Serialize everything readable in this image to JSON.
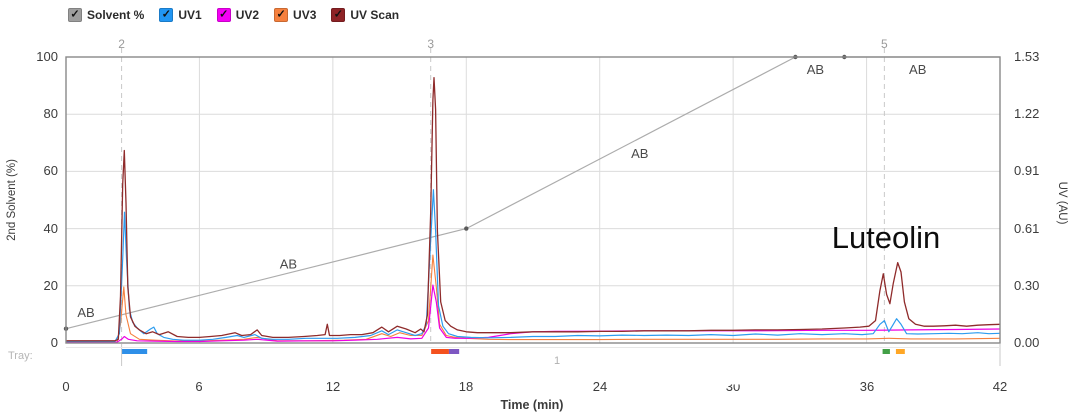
{
  "legend": {
    "checkmark_glyph": "✓",
    "items": [
      {
        "label": "Solvent %",
        "color": "#9E9E9E"
      },
      {
        "label": "UV1",
        "color": "#2196F3"
      },
      {
        "label": "UV2",
        "color": "#F400F4"
      },
      {
        "label": "UV3",
        "color": "#F5803E"
      },
      {
        "label": "UV Scan",
        "color": "#8E2326"
      }
    ]
  },
  "tray": {
    "label": "Tray:",
    "zone_label": "1"
  },
  "annotations": {
    "luteolin": {
      "text": "Luteolin"
    }
  },
  "chart_data": {
    "type": "line",
    "title": "",
    "xlabel": "Time (min)",
    "ylabel_left": "2nd Solvent (%)",
    "ylabel_right": "UV (AU)",
    "xlim": [
      0,
      42
    ],
    "ylim_left": [
      0,
      100
    ],
    "ylim_right": [
      0,
      1.53
    ],
    "x_ticks": {
      "values": [
        0,
        6,
        12,
        18,
        24,
        30,
        36,
        42
      ],
      "labels": [
        "0",
        "6",
        "12",
        "18",
        "24",
        "30",
        "36",
        "42"
      ]
    },
    "y_left_ticks": {
      "values": [
        100,
        80,
        60,
        40,
        20,
        0
      ],
      "labels": [
        "100",
        "80",
        "60",
        "40",
        "20",
        "0"
      ]
    },
    "y_right_ticks": {
      "values": [
        1.53,
        1.22,
        0.91,
        0.61,
        0.3,
        0.0
      ],
      "labels": [
        "1.53",
        "1.22",
        "0.91",
        "0.61",
        "0.30",
        "0.00"
      ]
    },
    "grid": {
      "x": [
        6,
        12,
        18,
        24,
        30,
        36
      ],
      "y_left": [
        20,
        40,
        60,
        80
      ]
    },
    "event_lines": [
      {
        "label": "2",
        "t": 2.5
      },
      {
        "label": "3",
        "t": 16.4
      },
      {
        "label": "5",
        "t": 36.8
      }
    ],
    "ab_labels": [
      {
        "text": "AB",
        "t": 0.9,
        "v": 10.5
      },
      {
        "text": "AB",
        "t": 10.0,
        "v": 27.5
      },
      {
        "text": "AB",
        "t": 25.8,
        "v": 66.0
      },
      {
        "text": "AB",
        "t": 33.7,
        "v": 95.5
      },
      {
        "text": "AB",
        "t": 38.3,
        "v": 95.5
      }
    ],
    "fraction_marks": [
      {
        "t0": 2.5,
        "t1": 3.65,
        "color": "#2E8FE8"
      },
      {
        "t0": 16.42,
        "t1": 17.22,
        "color": "#F4511E"
      },
      {
        "t0": 17.22,
        "t1": 17.68,
        "color": "#7E57C2"
      },
      {
        "t0": 36.72,
        "t1": 37.05,
        "color": "#43A047"
      },
      {
        "t0": 37.32,
        "t1": 37.72,
        "color": "#FFA726"
      }
    ],
    "tray_ticks_t": [
      2.5,
      42
    ],
    "series": [
      {
        "name": "Solvent %",
        "axis": "left",
        "color": "#ACACAC",
        "width": 1.2,
        "points": [
          [
            0,
            5
          ],
          [
            18,
            40
          ],
          [
            32.8,
            100
          ],
          [
            42,
            100
          ]
        ],
        "markers": [
          [
            0,
            5
          ],
          [
            18,
            40
          ],
          [
            32.8,
            100
          ],
          [
            35,
            100
          ]
        ]
      },
      {
        "name": "UV3",
        "axis": "right",
        "color": "#F5803E",
        "width": 1.1,
        "points": [
          [
            0,
            0.005
          ],
          [
            2.3,
            0.005
          ],
          [
            2.45,
            0.1
          ],
          [
            2.6,
            0.3
          ],
          [
            2.7,
            0.15
          ],
          [
            2.9,
            0.05
          ],
          [
            3.3,
            0.02
          ],
          [
            4,
            0.015
          ],
          [
            5,
            0.01
          ],
          [
            6,
            0.01
          ],
          [
            7,
            0.015
          ],
          [
            8,
            0.02
          ],
          [
            8.6,
            0.03
          ],
          [
            9.5,
            0.012
          ],
          [
            11,
            0.012
          ],
          [
            12.5,
            0.015
          ],
          [
            13.5,
            0.02
          ],
          [
            14.2,
            0.05
          ],
          [
            14.6,
            0.035
          ],
          [
            15.0,
            0.055
          ],
          [
            15.5,
            0.04
          ],
          [
            16.0,
            0.04
          ],
          [
            16.3,
            0.12
          ],
          [
            16.5,
            0.47
          ],
          [
            16.65,
            0.3
          ],
          [
            16.8,
            0.1
          ],
          [
            17.1,
            0.04
          ],
          [
            17.5,
            0.03
          ],
          [
            18,
            0.025
          ],
          [
            19,
            0.02
          ],
          [
            20,
            0.018
          ],
          [
            22,
            0.018
          ],
          [
            24,
            0.018
          ],
          [
            26,
            0.02
          ],
          [
            28,
            0.02
          ],
          [
            30,
            0.02
          ],
          [
            32,
            0.02
          ],
          [
            34,
            0.022
          ],
          [
            36,
            0.022
          ],
          [
            37,
            0.025
          ],
          [
            38,
            0.022
          ],
          [
            40,
            0.022
          ],
          [
            42,
            0.025
          ]
        ]
      },
      {
        "name": "UV2",
        "axis": "right",
        "color": "#EE00E4",
        "width": 1.2,
        "points": [
          [
            0,
            0.005
          ],
          [
            2.3,
            0.005
          ],
          [
            2.5,
            0.02
          ],
          [
            2.62,
            0.035
          ],
          [
            2.8,
            0.02
          ],
          [
            3.2,
            0.012
          ],
          [
            4,
            0.01
          ],
          [
            5,
            0.008
          ],
          [
            6,
            0.008
          ],
          [
            7,
            0.012
          ],
          [
            8,
            0.015
          ],
          [
            8.6,
            0.02
          ],
          [
            9.5,
            0.01
          ],
          [
            11,
            0.012
          ],
          [
            12,
            0.012
          ],
          [
            13,
            0.015
          ],
          [
            14,
            0.02
          ],
          [
            14.9,
            0.03
          ],
          [
            15.5,
            0.022
          ],
          [
            16.0,
            0.025
          ],
          [
            16.3,
            0.08
          ],
          [
            16.5,
            0.31
          ],
          [
            16.65,
            0.22
          ],
          [
            16.8,
            0.08
          ],
          [
            17.1,
            0.03
          ],
          [
            17.5,
            0.025
          ],
          [
            18,
            0.025
          ],
          [
            19,
            0.03
          ],
          [
            20,
            0.05
          ],
          [
            21,
            0.06
          ],
          [
            22,
            0.062
          ],
          [
            24,
            0.063
          ],
          [
            26,
            0.065
          ],
          [
            28,
            0.065
          ],
          [
            30,
            0.065
          ],
          [
            32,
            0.066
          ],
          [
            34,
            0.068
          ],
          [
            36,
            0.068
          ],
          [
            38,
            0.07
          ],
          [
            40,
            0.072
          ],
          [
            42,
            0.075
          ]
        ]
      },
      {
        "name": "UV1",
        "axis": "right",
        "color": "#2D9CEF",
        "width": 1.2,
        "points": [
          [
            0,
            0.008
          ],
          [
            2.2,
            0.008
          ],
          [
            2.4,
            0.05
          ],
          [
            2.55,
            0.45
          ],
          [
            2.63,
            0.7
          ],
          [
            2.72,
            0.45
          ],
          [
            2.85,
            0.18
          ],
          [
            3.0,
            0.11
          ],
          [
            3.2,
            0.08
          ],
          [
            3.5,
            0.05
          ],
          [
            3.8,
            0.075
          ],
          [
            3.95,
            0.085
          ],
          [
            4.1,
            0.05
          ],
          [
            4.4,
            0.03
          ],
          [
            4.8,
            0.02
          ],
          [
            5.3,
            0.015
          ],
          [
            6,
            0.015
          ],
          [
            6.6,
            0.02
          ],
          [
            7.2,
            0.03
          ],
          [
            7.7,
            0.04
          ],
          [
            8.0,
            0.03
          ],
          [
            8.5,
            0.045
          ],
          [
            8.8,
            0.025
          ],
          [
            9.3,
            0.02
          ],
          [
            10,
            0.02
          ],
          [
            10.8,
            0.025
          ],
          [
            11.5,
            0.025
          ],
          [
            12.2,
            0.025
          ],
          [
            13,
            0.03
          ],
          [
            13.7,
            0.04
          ],
          [
            14.2,
            0.065
          ],
          [
            14.5,
            0.045
          ],
          [
            14.9,
            0.07
          ],
          [
            15.3,
            0.055
          ],
          [
            15.7,
            0.04
          ],
          [
            16.0,
            0.05
          ],
          [
            16.2,
            0.1
          ],
          [
            16.4,
            0.55
          ],
          [
            16.52,
            0.82
          ],
          [
            16.62,
            0.6
          ],
          [
            16.75,
            0.2
          ],
          [
            16.95,
            0.09
          ],
          [
            17.2,
            0.05
          ],
          [
            17.6,
            0.035
          ],
          [
            18.2,
            0.03
          ],
          [
            19,
            0.028
          ],
          [
            20,
            0.03
          ],
          [
            21,
            0.035
          ],
          [
            22,
            0.035
          ],
          [
            23,
            0.04
          ],
          [
            24,
            0.038
          ],
          [
            25,
            0.042
          ],
          [
            26,
            0.04
          ],
          [
            27,
            0.042
          ],
          [
            28,
            0.04
          ],
          [
            29,
            0.045
          ],
          [
            30,
            0.04
          ],
          [
            31,
            0.048
          ],
          [
            32,
            0.042
          ],
          [
            33,
            0.05
          ],
          [
            34,
            0.045
          ],
          [
            35,
            0.05
          ],
          [
            35.8,
            0.045
          ],
          [
            36.3,
            0.05
          ],
          [
            36.6,
            0.1
          ],
          [
            36.8,
            0.12
          ],
          [
            37.0,
            0.06
          ],
          [
            37.2,
            0.1
          ],
          [
            37.35,
            0.13
          ],
          [
            37.55,
            0.1
          ],
          [
            37.8,
            0.05
          ],
          [
            38.3,
            0.048
          ],
          [
            39,
            0.05
          ],
          [
            39.7,
            0.052
          ],
          [
            40.3,
            0.05
          ],
          [
            41,
            0.055
          ],
          [
            41.5,
            0.05
          ],
          [
            42,
            0.052
          ]
        ]
      },
      {
        "name": "UV Scan",
        "axis": "right",
        "color": "#8F2B2B",
        "width": 1.3,
        "points": [
          [
            0,
            0.012
          ],
          [
            1,
            0.012
          ],
          [
            2.2,
            0.012
          ],
          [
            2.35,
            0.02
          ],
          [
            2.45,
            0.25
          ],
          [
            2.55,
            0.85
          ],
          [
            2.62,
            1.03
          ],
          [
            2.7,
            0.75
          ],
          [
            2.78,
            0.3
          ],
          [
            2.9,
            0.14
          ],
          [
            3.1,
            0.09
          ],
          [
            3.3,
            0.07
          ],
          [
            3.6,
            0.05
          ],
          [
            3.9,
            0.06
          ],
          [
            4.2,
            0.045
          ],
          [
            4.6,
            0.06
          ],
          [
            5.0,
            0.035
          ],
          [
            5.5,
            0.03
          ],
          [
            6.0,
            0.03
          ],
          [
            6.5,
            0.035
          ],
          [
            7.0,
            0.04
          ],
          [
            7.6,
            0.055
          ],
          [
            7.9,
            0.04
          ],
          [
            8.3,
            0.045
          ],
          [
            8.6,
            0.07
          ],
          [
            8.8,
            0.04
          ],
          [
            9.3,
            0.03
          ],
          [
            10,
            0.03
          ],
          [
            10.7,
            0.035
          ],
          [
            11.3,
            0.04
          ],
          [
            11.65,
            0.045
          ],
          [
            11.75,
            0.1
          ],
          [
            11.85,
            0.04
          ],
          [
            12.3,
            0.04
          ],
          [
            12.8,
            0.045
          ],
          [
            13.3,
            0.045
          ],
          [
            13.8,
            0.055
          ],
          [
            14.2,
            0.085
          ],
          [
            14.5,
            0.06
          ],
          [
            14.9,
            0.09
          ],
          [
            15.3,
            0.075
          ],
          [
            15.7,
            0.055
          ],
          [
            15.95,
            0.075
          ],
          [
            16.1,
            0.06
          ],
          [
            16.25,
            0.15
          ],
          [
            16.4,
            0.7
          ],
          [
            16.5,
            1.3
          ],
          [
            16.55,
            1.42
          ],
          [
            16.62,
            1.25
          ],
          [
            16.7,
            0.6
          ],
          [
            16.85,
            0.22
          ],
          [
            17.05,
            0.12
          ],
          [
            17.3,
            0.09
          ],
          [
            17.6,
            0.07
          ],
          [
            18,
            0.06
          ],
          [
            18.5,
            0.055
          ],
          [
            19,
            0.055
          ],
          [
            20,
            0.055
          ],
          [
            21,
            0.06
          ],
          [
            22,
            0.06
          ],
          [
            23,
            0.06
          ],
          [
            24,
            0.062
          ],
          [
            25,
            0.062
          ],
          [
            26,
            0.065
          ],
          [
            27,
            0.065
          ],
          [
            28,
            0.065
          ],
          [
            29,
            0.068
          ],
          [
            30,
            0.068
          ],
          [
            31,
            0.07
          ],
          [
            32,
            0.07
          ],
          [
            33,
            0.072
          ],
          [
            34,
            0.075
          ],
          [
            35,
            0.08
          ],
          [
            35.7,
            0.085
          ],
          [
            36.1,
            0.09
          ],
          [
            36.4,
            0.12
          ],
          [
            36.6,
            0.28
          ],
          [
            36.75,
            0.37
          ],
          [
            36.9,
            0.26
          ],
          [
            37.05,
            0.21
          ],
          [
            37.2,
            0.32
          ],
          [
            37.4,
            0.43
          ],
          [
            37.55,
            0.38
          ],
          [
            37.7,
            0.22
          ],
          [
            37.9,
            0.13
          ],
          [
            38.2,
            0.1
          ],
          [
            38.6,
            0.09
          ],
          [
            39,
            0.09
          ],
          [
            39.5,
            0.092
          ],
          [
            40,
            0.095
          ],
          [
            40.5,
            0.09
          ],
          [
            41,
            0.095
          ],
          [
            41.5,
            0.098
          ],
          [
            42,
            0.1
          ]
        ]
      }
    ]
  }
}
